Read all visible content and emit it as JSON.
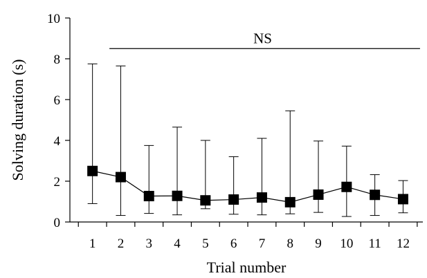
{
  "chart_data": {
    "type": "line",
    "xlabel": "Trial number",
    "ylabel": "Solving duration (s)",
    "x": [
      1,
      2,
      3,
      4,
      5,
      6,
      7,
      8,
      9,
      10,
      11,
      12
    ],
    "x_tick_labels": [
      "1",
      "2",
      "3",
      "4",
      "5",
      "6",
      "7",
      "8",
      "9",
      "10",
      "11",
      "12"
    ],
    "xlim": [
      0.2,
      12.7
    ],
    "ylim": [
      0,
      10
    ],
    "y_ticks": [
      0,
      2,
      4,
      6,
      8,
      10
    ],
    "y_tick_labels": [
      "0",
      "2",
      "4",
      "6",
      "8",
      "10"
    ],
    "grid": false,
    "marker": "square",
    "series": [
      {
        "values": [
          2.5,
          2.2,
          1.27,
          1.28,
          1.06,
          1.1,
          1.2,
          0.97,
          1.34,
          1.72,
          1.33,
          1.12
        ],
        "error_upper": [
          7.75,
          7.65,
          3.75,
          4.65,
          4.0,
          3.2,
          4.1,
          5.45,
          3.97,
          3.72,
          2.32,
          2.03
        ],
        "error_lower": [
          0.9,
          0.32,
          0.42,
          0.35,
          0.65,
          0.38,
          0.35,
          0.4,
          0.47,
          0.27,
          0.32,
          0.45
        ]
      }
    ],
    "annotations": [
      {
        "text": "NS",
        "x_from": 1.6,
        "x_to": 12.6,
        "y": 8.5
      }
    ]
  }
}
